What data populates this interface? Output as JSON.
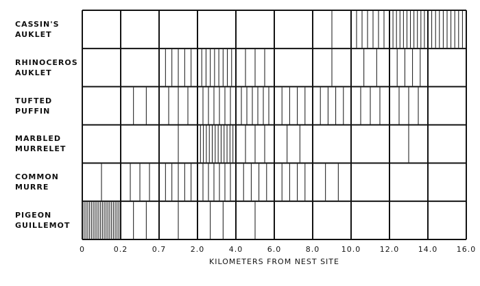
{
  "chart_data": {
    "type": "line-density",
    "x_label": "KILOMETERS FROM NEST SITE",
    "xticks": [
      0,
      0.2,
      {
        "value": 0.7,
        "label": "0.7"
      },
      {
        "value": 2,
        "label": "2.0"
      },
      {
        "value": 4,
        "label": "4.0"
      },
      {
        "value": 6,
        "label": "6.0"
      },
      {
        "value": 8,
        "label": "8.0"
      },
      {
        "value": 10,
        "label": "10.0"
      },
      {
        "value": 12,
        "label": "12.0"
      },
      {
        "value": 14,
        "label": "14.0"
      },
      {
        "value": 16,
        "label": "16.0"
      }
    ],
    "color": "#111111",
    "series": [
      {
        "name": "CASSIN'S AUKLET",
        "values": [
          0,
          0,
          0,
          0,
          0,
          0,
          1,
          6,
          10,
          9
        ]
      },
      {
        "name": "RHINOCEROS AUKLET",
        "values": [
          0,
          0,
          5,
          8,
          3,
          0,
          1,
          2,
          4,
          0
        ]
      },
      {
        "name": "TUFTED PUFFIN",
        "values": [
          0,
          2,
          3,
          6,
          6,
          4,
          4,
          3,
          3,
          0
        ]
      },
      {
        "name": "MARBLED MURRELET",
        "values": [
          0,
          0,
          1,
          12,
          3,
          2,
          0,
          0,
          1,
          0
        ]
      },
      {
        "name": "COMMON MURRE",
        "values": [
          1,
          3,
          5,
          6,
          4,
          4,
          2,
          0,
          0,
          0
        ]
      },
      {
        "name": "PIGEON GUILLEMOT",
        "values": [
          20,
          2,
          1,
          2,
          1,
          0,
          0,
          0,
          0,
          0
        ]
      }
    ]
  }
}
